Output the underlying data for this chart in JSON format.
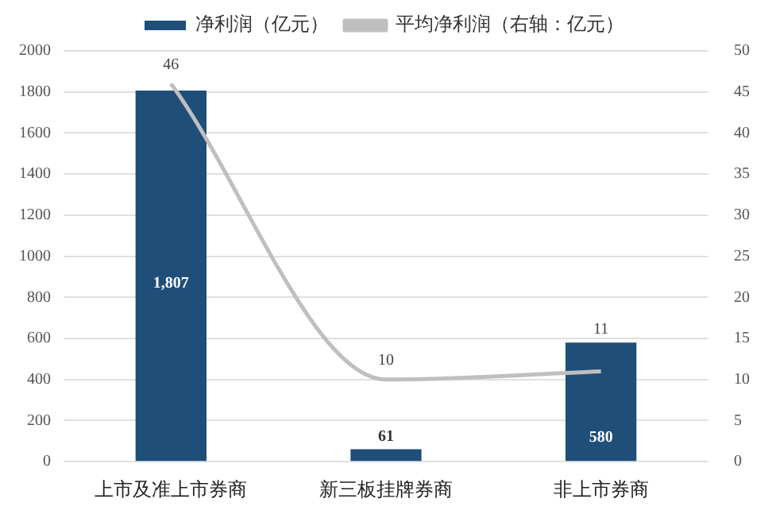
{
  "chart_data": {
    "type": "bar",
    "categories": [
      "上市及准上市券商",
      "新三板挂牌券商",
      "非上市券商"
    ],
    "series": [
      {
        "name": "净利润（亿元）",
        "color": "#1f4e79",
        "values": [
          1807,
          61,
          580
        ],
        "value_labels": [
          "1,807",
          "61",
          "580"
        ]
      },
      {
        "name": "平均净利润（右轴：亿元）",
        "type": "line",
        "axis": "y2",
        "color": "#bfbfbf",
        "values": [
          46,
          10,
          11
        ],
        "value_labels": [
          "46",
          "10",
          "11"
        ],
        "marker": "none"
      }
    ],
    "ylim": [
      0,
      2000
    ],
    "yticks": [
      0,
      200,
      400,
      600,
      800,
      1000,
      1200,
      1400,
      1600,
      1800,
      2000
    ],
    "y2lim": [
      0,
      50
    ],
    "y2ticks": [
      0,
      5,
      10,
      15,
      20,
      25,
      30,
      35,
      40,
      45,
      50
    ],
    "grid": "y",
    "legend": "top"
  }
}
